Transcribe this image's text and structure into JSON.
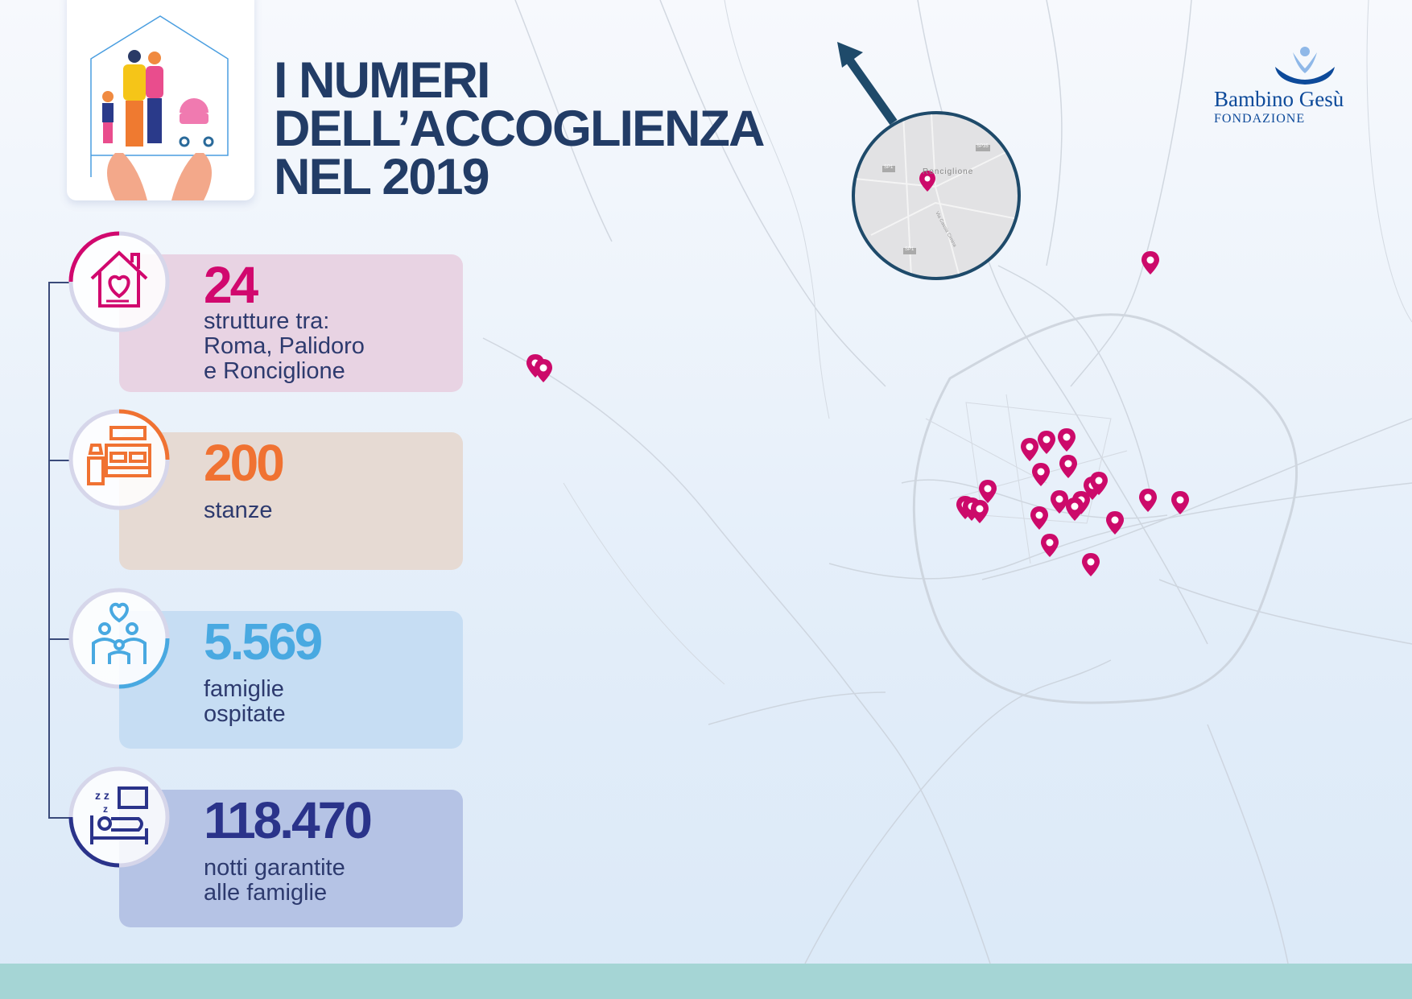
{
  "title": {
    "line1": "I NUMERI",
    "line2": "DELL’ACCOGLIENZA",
    "line3": "NEL 2019"
  },
  "logo": {
    "name": "Bambino Gesù",
    "sub": "FONDAZIONE"
  },
  "inset_map": {
    "town_label": "Ronciglione",
    "road_labels": [
      "SP35",
      "SP1",
      "SP1",
      "Via Cassia Cimina"
    ]
  },
  "stats": [
    {
      "value": "24",
      "label_lines": [
        "strutture tra:",
        "Roma, Palidoro",
        "e Ronciglione"
      ],
      "icon": "house-heart-icon",
      "color": "#d1086e",
      "card": "#e8d3e3"
    },
    {
      "value": "200",
      "label_lines": [
        "stanze"
      ],
      "icon": "bedroom-icon",
      "color": "#f07232",
      "card": "#e6dad3"
    },
    {
      "value": "5.569",
      "label_lines": [
        "famiglie",
        "ospitate"
      ],
      "icon": "family-icon",
      "color": "#49a9e1",
      "card": "#c6ddf3"
    },
    {
      "value": "118.470",
      "label_lines": [
        "notti garantite",
        "alle famiglie"
      ],
      "icon": "sleeping-icon",
      "color": "#2a338a",
      "card": "#b5c3e5"
    }
  ],
  "colors": {
    "title": "#223c66",
    "pin": "#cc0a6a",
    "band": "#a5d5d5",
    "label": "#2d3a6e"
  }
}
